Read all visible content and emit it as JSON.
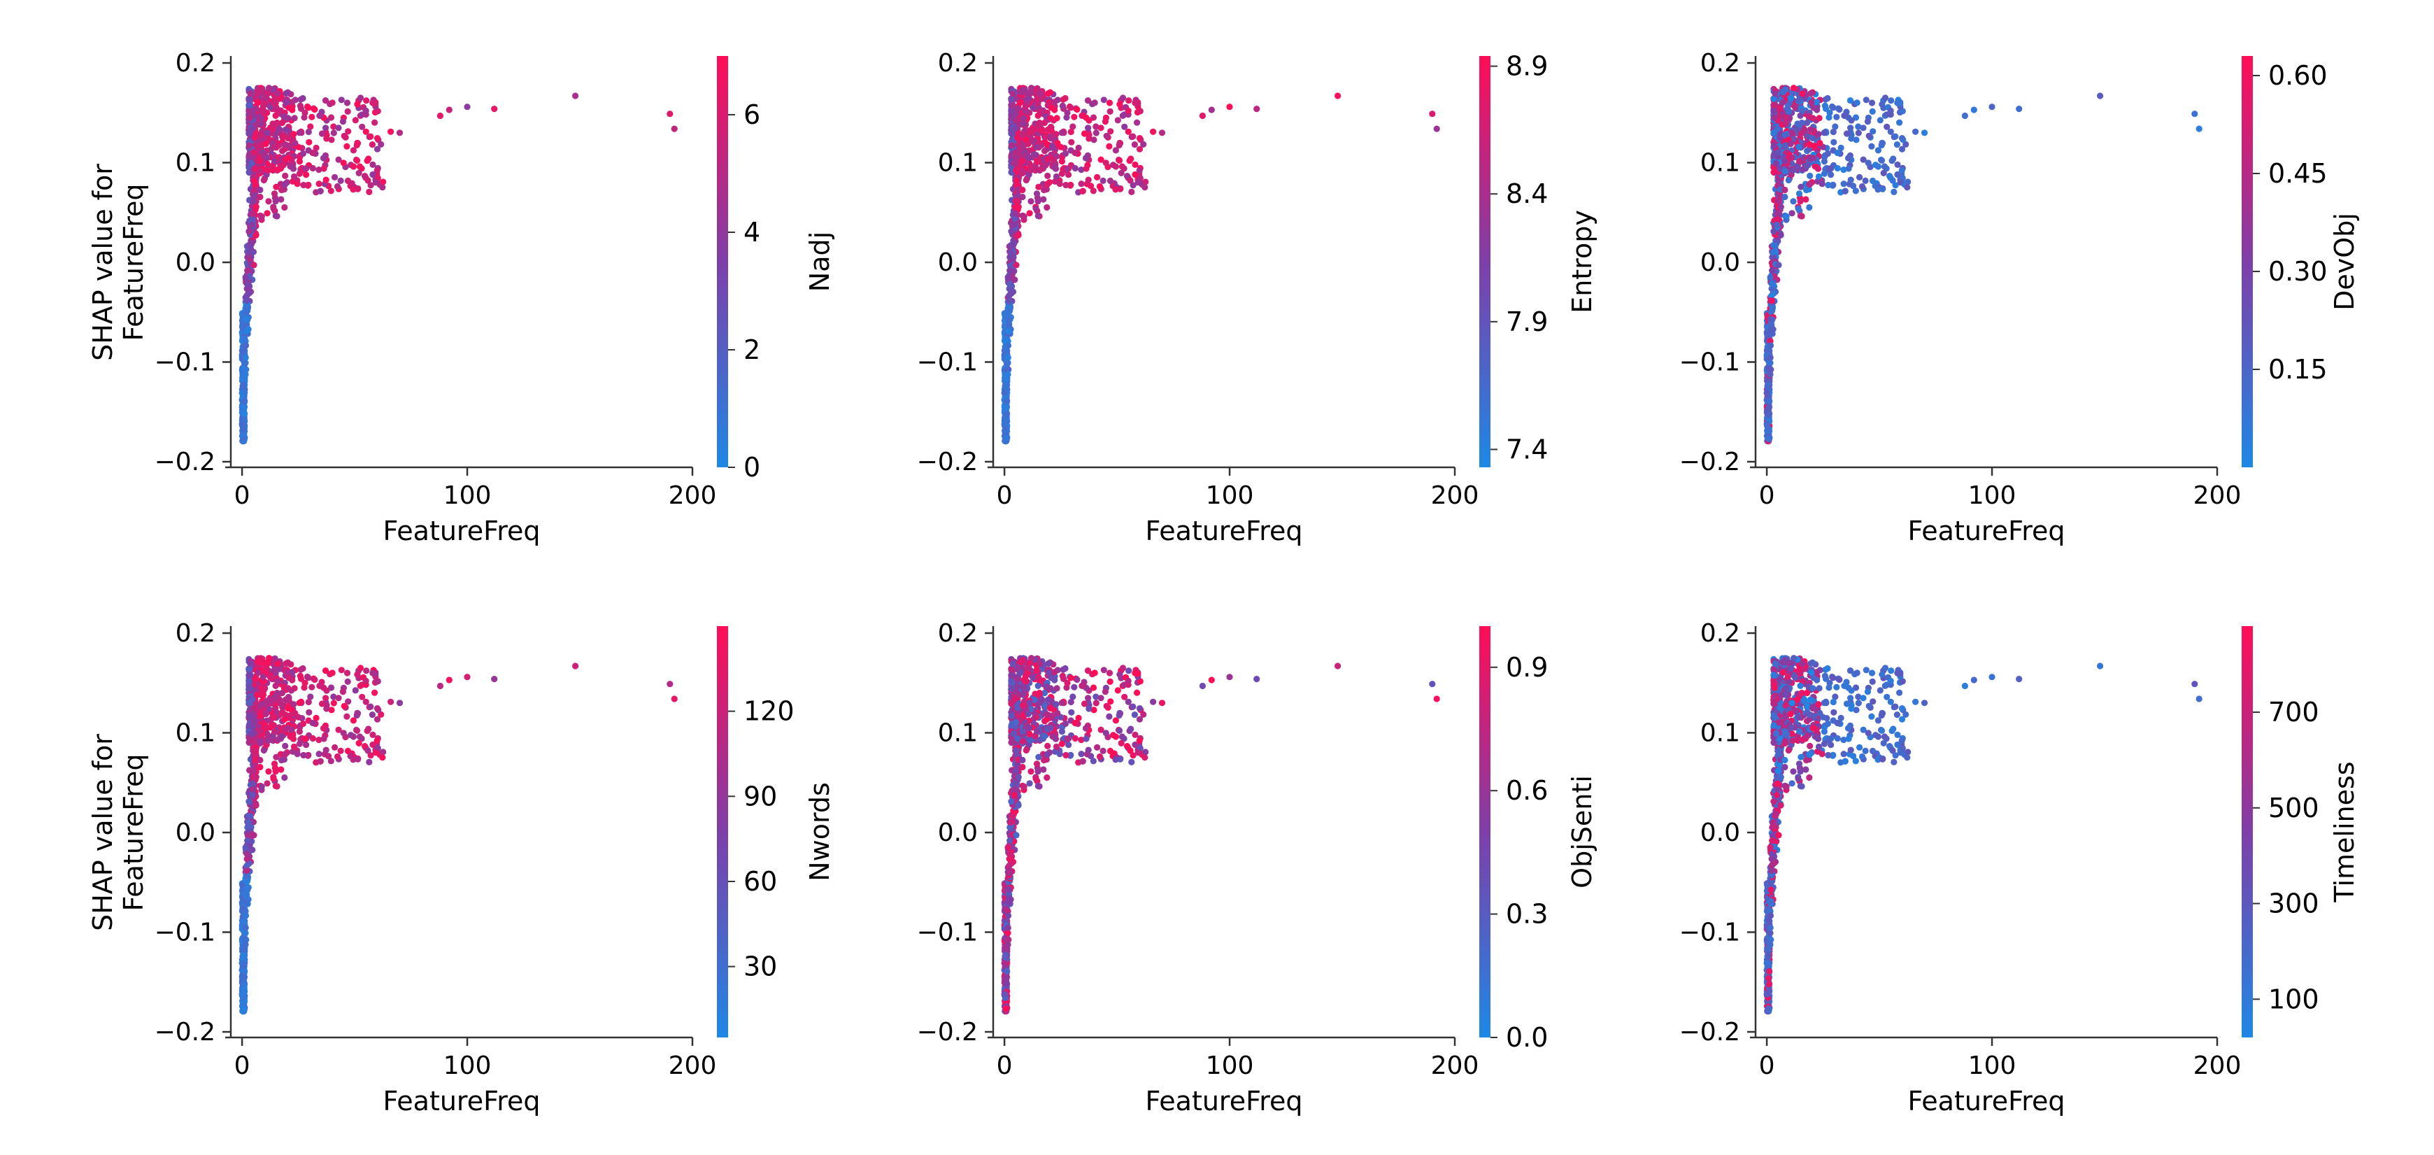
{
  "figure": {
    "shared_xlabel": "FeatureFreq",
    "shared_ylabel_line1": "SHAP value for",
    "shared_ylabel_line2": "FeatureFreq"
  },
  "colors": {
    "low": "#1e88e5",
    "high": "#ff0d57",
    "axis": "#333333"
  },
  "chart_data": [
    {
      "type": "scatter",
      "panel": "top-left",
      "xlabel": "FeatureFreq",
      "ylabel": "SHAP value for FeatureFreq",
      "show_ylabel": true,
      "xlim": [
        -5,
        200
      ],
      "ylim": [
        -0.2,
        0.2
      ],
      "xticks": [
        0,
        100,
        200
      ],
      "xtick_labels": [
        "0",
        "100",
        "200"
      ],
      "yticks": [
        0.2,
        0.1,
        0.0,
        -0.1,
        -0.2
      ],
      "ytick_labels": [
        "0.2",
        "0.1",
        "0.0",
        "−0.1",
        "−0.2"
      ],
      "color_feature": "Nadj",
      "color_range": [
        0,
        7
      ],
      "colorbar_ticks": [
        0,
        2,
        4,
        6
      ],
      "colorbar_tick_labels": [
        "0",
        "2",
        "4",
        "6"
      ],
      "color_trend": "increasing"
    },
    {
      "type": "scatter",
      "panel": "top-middle",
      "xlabel": "FeatureFreq",
      "ylabel": "",
      "show_ylabel": false,
      "xlim": [
        -5,
        200
      ],
      "ylim": [
        -0.2,
        0.2
      ],
      "xticks": [
        0,
        100,
        200
      ],
      "xtick_labels": [
        "0",
        "100",
        "200"
      ],
      "yticks": [
        0.2,
        0.1,
        0.0,
        -0.1,
        -0.2
      ],
      "ytick_labels": [
        "0.2",
        "0.1",
        "0.0",
        "−0.1",
        "−0.2"
      ],
      "color_feature": "Entropy",
      "color_range": [
        7.33,
        8.94
      ],
      "colorbar_ticks": [
        7.4,
        7.9,
        8.4,
        8.9
      ],
      "colorbar_tick_labels": [
        "7.4",
        "7.9",
        "8.4",
        "8.9"
      ],
      "color_trend": "increasing"
    },
    {
      "type": "scatter",
      "panel": "top-right",
      "xlabel": "FeatureFreq",
      "ylabel": "",
      "show_ylabel": false,
      "xlim": [
        -5,
        200
      ],
      "ylim": [
        -0.2,
        0.2
      ],
      "xticks": [
        0,
        100,
        200
      ],
      "xtick_labels": [
        "0",
        "100",
        "200"
      ],
      "yticks": [
        0.2,
        0.1,
        0.0,
        -0.1,
        -0.2
      ],
      "ytick_labels": [
        "0.2",
        "0.1",
        "0.0",
        "−0.1",
        "−0.2"
      ],
      "color_feature": "DevObj",
      "color_range": [
        0.0,
        0.63
      ],
      "colorbar_ticks": [
        0.15,
        0.3,
        0.45,
        0.6
      ],
      "colorbar_tick_labels": [
        "0.15",
        "0.30",
        "0.45",
        "0.60"
      ],
      "color_trend": "decreasing"
    },
    {
      "type": "scatter",
      "panel": "bottom-left",
      "xlabel": "FeatureFreq",
      "ylabel": "SHAP value for FeatureFreq",
      "show_ylabel": true,
      "xlim": [
        -5,
        200
      ],
      "ylim": [
        -0.2,
        0.2
      ],
      "xticks": [
        0,
        100,
        200
      ],
      "xtick_labels": [
        "0",
        "100",
        "200"
      ],
      "yticks": [
        0.2,
        0.1,
        0.0,
        -0.1,
        -0.2
      ],
      "ytick_labels": [
        "0.2",
        "0.1",
        "0.0",
        "−0.1",
        "−0.2"
      ],
      "color_feature": "Nwords",
      "color_range": [
        5,
        150
      ],
      "colorbar_ticks": [
        30,
        60,
        90,
        120
      ],
      "colorbar_tick_labels": [
        "30",
        "60",
        "90",
        "120"
      ],
      "color_trend": "increasing"
    },
    {
      "type": "scatter",
      "panel": "bottom-middle",
      "xlabel": "FeatureFreq",
      "ylabel": "",
      "show_ylabel": false,
      "xlim": [
        -5,
        200
      ],
      "ylim": [
        -0.2,
        0.2
      ],
      "xticks": [
        0,
        100,
        200
      ],
      "xtick_labels": [
        "0",
        "100",
        "200"
      ],
      "yticks": [
        0.2,
        0.1,
        0.0,
        -0.1,
        -0.2
      ],
      "ytick_labels": [
        "0.2",
        "0.1",
        "0.0",
        "−0.1",
        "−0.2"
      ],
      "color_feature": "ObjSenti",
      "color_range": [
        0.0,
        1.0
      ],
      "colorbar_ticks": [
        0.0,
        0.3,
        0.6,
        0.9
      ],
      "colorbar_tick_labels": [
        "0.0",
        "0.3",
        "0.6",
        "0.9"
      ],
      "color_trend": "mixed"
    },
    {
      "type": "scatter",
      "panel": "bottom-right",
      "xlabel": "FeatureFreq",
      "ylabel": "",
      "show_ylabel": false,
      "xlim": [
        -5,
        200
      ],
      "ylim": [
        -0.2,
        0.2
      ],
      "xticks": [
        0,
        100,
        200
      ],
      "xtick_labels": [
        "0",
        "100",
        "200"
      ],
      "yticks": [
        0.2,
        0.1,
        0.0,
        -0.1,
        -0.2
      ],
      "ytick_labels": [
        "0.2",
        "0.1",
        "0.0",
        "−0.1",
        "−0.2"
      ],
      "color_feature": "Timeliness",
      "color_range": [
        20,
        880
      ],
      "colorbar_ticks": [
        100,
        300,
        500,
        700
      ],
      "colorbar_tick_labels": [
        "100",
        "300",
        "500",
        "700"
      ],
      "color_trend": "decreasing"
    }
  ]
}
